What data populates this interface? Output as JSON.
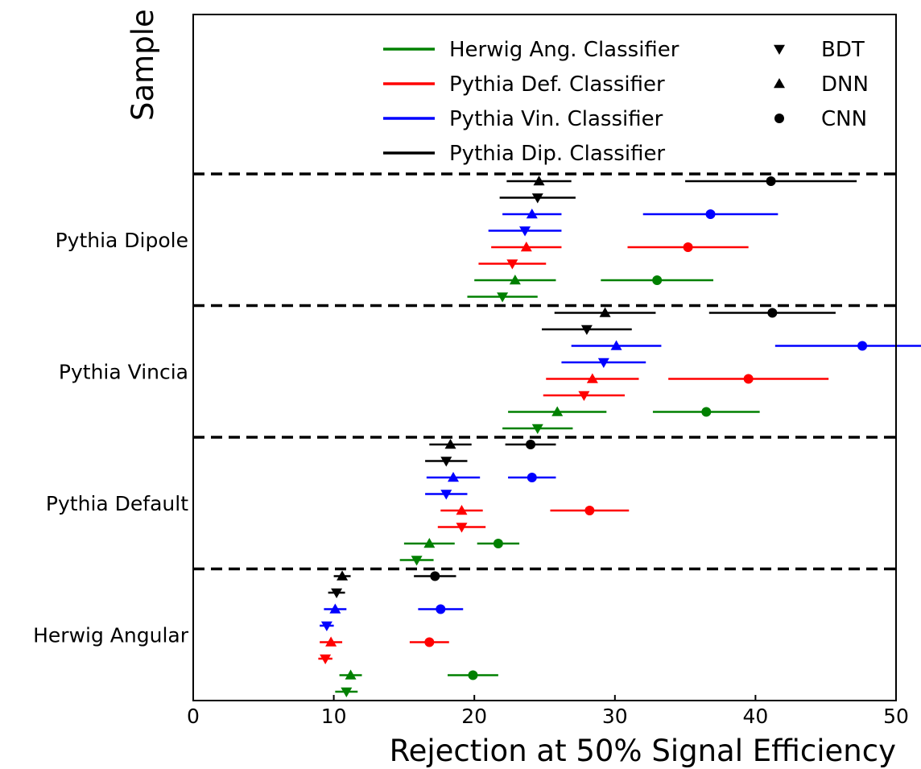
{
  "chart_data": {
    "type": "errorbar",
    "xlabel": "Rejection at 50% Signal Efficiency",
    "ylabel": "Sample",
    "xlim": [
      0,
      50
    ],
    "xticks": [
      "0",
      "10",
      "20",
      "30",
      "40",
      "50"
    ],
    "grid": false,
    "legend": {
      "placement": "top-right",
      "series": [
        "Herwig Ang. Classifier",
        "Pythia Def. Classifier",
        "Pythia Vin. Classifier",
        "Pythia Dip. Classifier"
      ],
      "methods": [
        {
          "label": "BDT",
          "marker": "triangle-down"
        },
        {
          "label": "DNN",
          "marker": "triangle-up"
        },
        {
          "label": "CNN",
          "marker": "circle"
        }
      ]
    },
    "samples": [
      "Herwig Angular",
      "Pythia Default",
      "Pythia Vincia",
      "Pythia Dipole"
    ],
    "series_colors": {
      "Herwig Ang. Classifier": "#008000",
      "Pythia Def. Classifier": "#ff0000",
      "Pythia Vin. Classifier": "#0000ff",
      "Pythia Dip. Classifier": "#000000"
    },
    "points": [
      {
        "sample": "Herwig Angular",
        "series": "Herwig Ang. Classifier",
        "method": "BDT",
        "value": 10.9,
        "err": 0.8
      },
      {
        "sample": "Herwig Angular",
        "series": "Herwig Ang. Classifier",
        "method": "DNN",
        "value": 11.2,
        "err": 0.8
      },
      {
        "sample": "Herwig Angular",
        "series": "Herwig Ang. Classifier",
        "method": "CNN",
        "value": 19.9,
        "err": 1.8
      },
      {
        "sample": "Herwig Angular",
        "series": "Pythia Def. Classifier",
        "method": "BDT",
        "value": 9.4,
        "err": 0.5
      },
      {
        "sample": "Herwig Angular",
        "series": "Pythia Def. Classifier",
        "method": "DNN",
        "value": 9.8,
        "err": 0.8
      },
      {
        "sample": "Herwig Angular",
        "series": "Pythia Def. Classifier",
        "method": "CNN",
        "value": 16.8,
        "err": 1.4
      },
      {
        "sample": "Herwig Angular",
        "series": "Pythia Vin. Classifier",
        "method": "BDT",
        "value": 9.5,
        "err": 0.5
      },
      {
        "sample": "Herwig Angular",
        "series": "Pythia Vin. Classifier",
        "method": "DNN",
        "value": 10.1,
        "err": 0.8
      },
      {
        "sample": "Herwig Angular",
        "series": "Pythia Vin. Classifier",
        "method": "CNN",
        "value": 17.6,
        "err": 1.6
      },
      {
        "sample": "Herwig Angular",
        "series": "Pythia Dip. Classifier",
        "method": "BDT",
        "value": 10.2,
        "err": 0.6
      },
      {
        "sample": "Herwig Angular",
        "series": "Pythia Dip. Classifier",
        "method": "DNN",
        "value": 10.6,
        "err": 0.6
      },
      {
        "sample": "Herwig Angular",
        "series": "Pythia Dip. Classifier",
        "method": "CNN",
        "value": 17.2,
        "err": 1.5
      },
      {
        "sample": "Pythia Default",
        "series": "Herwig Ang. Classifier",
        "method": "BDT",
        "value": 15.9,
        "err": 1.2
      },
      {
        "sample": "Pythia Default",
        "series": "Herwig Ang. Classifier",
        "method": "DNN",
        "value": 16.8,
        "err": 1.8
      },
      {
        "sample": "Pythia Default",
        "series": "Herwig Ang. Classifier",
        "method": "CNN",
        "value": 21.7,
        "err": 1.5
      },
      {
        "sample": "Pythia Default",
        "series": "Pythia Def. Classifier",
        "method": "BDT",
        "value": 19.1,
        "err": 1.7
      },
      {
        "sample": "Pythia Default",
        "series": "Pythia Def. Classifier",
        "method": "DNN",
        "value": 19.1,
        "err": 1.5
      },
      {
        "sample": "Pythia Default",
        "series": "Pythia Def. Classifier",
        "method": "CNN",
        "value": 28.2,
        "err": 2.8
      },
      {
        "sample": "Pythia Default",
        "series": "Pythia Vin. Classifier",
        "method": "BDT",
        "value": 18.0,
        "err": 1.5
      },
      {
        "sample": "Pythia Default",
        "series": "Pythia Vin. Classifier",
        "method": "DNN",
        "value": 18.5,
        "err": 1.9
      },
      {
        "sample": "Pythia Default",
        "series": "Pythia Vin. Classifier",
        "method": "CNN",
        "value": 24.1,
        "err": 1.7
      },
      {
        "sample": "Pythia Default",
        "series": "Pythia Dip. Classifier",
        "method": "BDT",
        "value": 18.0,
        "err": 1.5
      },
      {
        "sample": "Pythia Default",
        "series": "Pythia Dip. Classifier",
        "method": "DNN",
        "value": 18.3,
        "err": 1.5
      },
      {
        "sample": "Pythia Default",
        "series": "Pythia Dip. Classifier",
        "method": "CNN",
        "value": 24.0,
        "err": 1.8
      },
      {
        "sample": "Pythia Vincia",
        "series": "Herwig Ang. Classifier",
        "method": "BDT",
        "value": 24.5,
        "err": 2.5
      },
      {
        "sample": "Pythia Vincia",
        "series": "Herwig Ang. Classifier",
        "method": "DNN",
        "value": 25.9,
        "err": 3.5
      },
      {
        "sample": "Pythia Vincia",
        "series": "Herwig Ang. Classifier",
        "method": "CNN",
        "value": 36.5,
        "err": 3.8
      },
      {
        "sample": "Pythia Vincia",
        "series": "Pythia Def. Classifier",
        "method": "BDT",
        "value": 27.8,
        "err": 2.9
      },
      {
        "sample": "Pythia Vincia",
        "series": "Pythia Def. Classifier",
        "method": "DNN",
        "value": 28.4,
        "err": 3.3
      },
      {
        "sample": "Pythia Vincia",
        "series": "Pythia Def. Classifier",
        "method": "CNN",
        "value": 39.5,
        "err": 5.7
      },
      {
        "sample": "Pythia Vincia",
        "series": "Pythia Vin. Classifier",
        "method": "BDT",
        "value": 29.2,
        "err": 3.0
      },
      {
        "sample": "Pythia Vincia",
        "series": "Pythia Vin. Classifier",
        "method": "DNN",
        "value": 30.1,
        "err": 3.2
      },
      {
        "sample": "Pythia Vincia",
        "series": "Pythia Vin. Classifier",
        "method": "CNN",
        "value": 47.6,
        "err": 6.2
      },
      {
        "sample": "Pythia Vincia",
        "series": "Pythia Dip. Classifier",
        "method": "BDT",
        "value": 28.0,
        "err": 3.2
      },
      {
        "sample": "Pythia Vincia",
        "series": "Pythia Dip. Classifier",
        "method": "DNN",
        "value": 29.3,
        "err": 3.6
      },
      {
        "sample": "Pythia Vincia",
        "series": "Pythia Dip. Classifier",
        "method": "CNN",
        "value": 41.2,
        "err": 4.5
      },
      {
        "sample": "Pythia Dipole",
        "series": "Herwig Ang. Classifier",
        "method": "BDT",
        "value": 22.0,
        "err": 2.5
      },
      {
        "sample": "Pythia Dipole",
        "series": "Herwig Ang. Classifier",
        "method": "DNN",
        "value": 22.9,
        "err": 2.9
      },
      {
        "sample": "Pythia Dipole",
        "series": "Herwig Ang. Classifier",
        "method": "CNN",
        "value": 33.0,
        "err": 4.0
      },
      {
        "sample": "Pythia Dipole",
        "series": "Pythia Def. Classifier",
        "method": "BDT",
        "value": 22.7,
        "err": 2.4
      },
      {
        "sample": "Pythia Dipole",
        "series": "Pythia Def. Classifier",
        "method": "DNN",
        "value": 23.7,
        "err": 2.5
      },
      {
        "sample": "Pythia Dipole",
        "series": "Pythia Def. Classifier",
        "method": "CNN",
        "value": 35.2,
        "err": 4.3
      },
      {
        "sample": "Pythia Dipole",
        "series": "Pythia Vin. Classifier",
        "method": "BDT",
        "value": 23.6,
        "err": 2.6
      },
      {
        "sample": "Pythia Dipole",
        "series": "Pythia Vin. Classifier",
        "method": "DNN",
        "value": 24.1,
        "err": 2.1
      },
      {
        "sample": "Pythia Dipole",
        "series": "Pythia Vin. Classifier",
        "method": "CNN",
        "value": 36.8,
        "err": 4.8
      },
      {
        "sample": "Pythia Dipole",
        "series": "Pythia Dip. Classifier",
        "method": "BDT",
        "value": 24.5,
        "err": 2.7
      },
      {
        "sample": "Pythia Dipole",
        "series": "Pythia Dip. Classifier",
        "method": "DNN",
        "value": 24.6,
        "err": 2.3
      },
      {
        "sample": "Pythia Dipole",
        "series": "Pythia Dip. Classifier",
        "method": "CNN",
        "value": 41.1,
        "err": 6.1
      }
    ]
  }
}
